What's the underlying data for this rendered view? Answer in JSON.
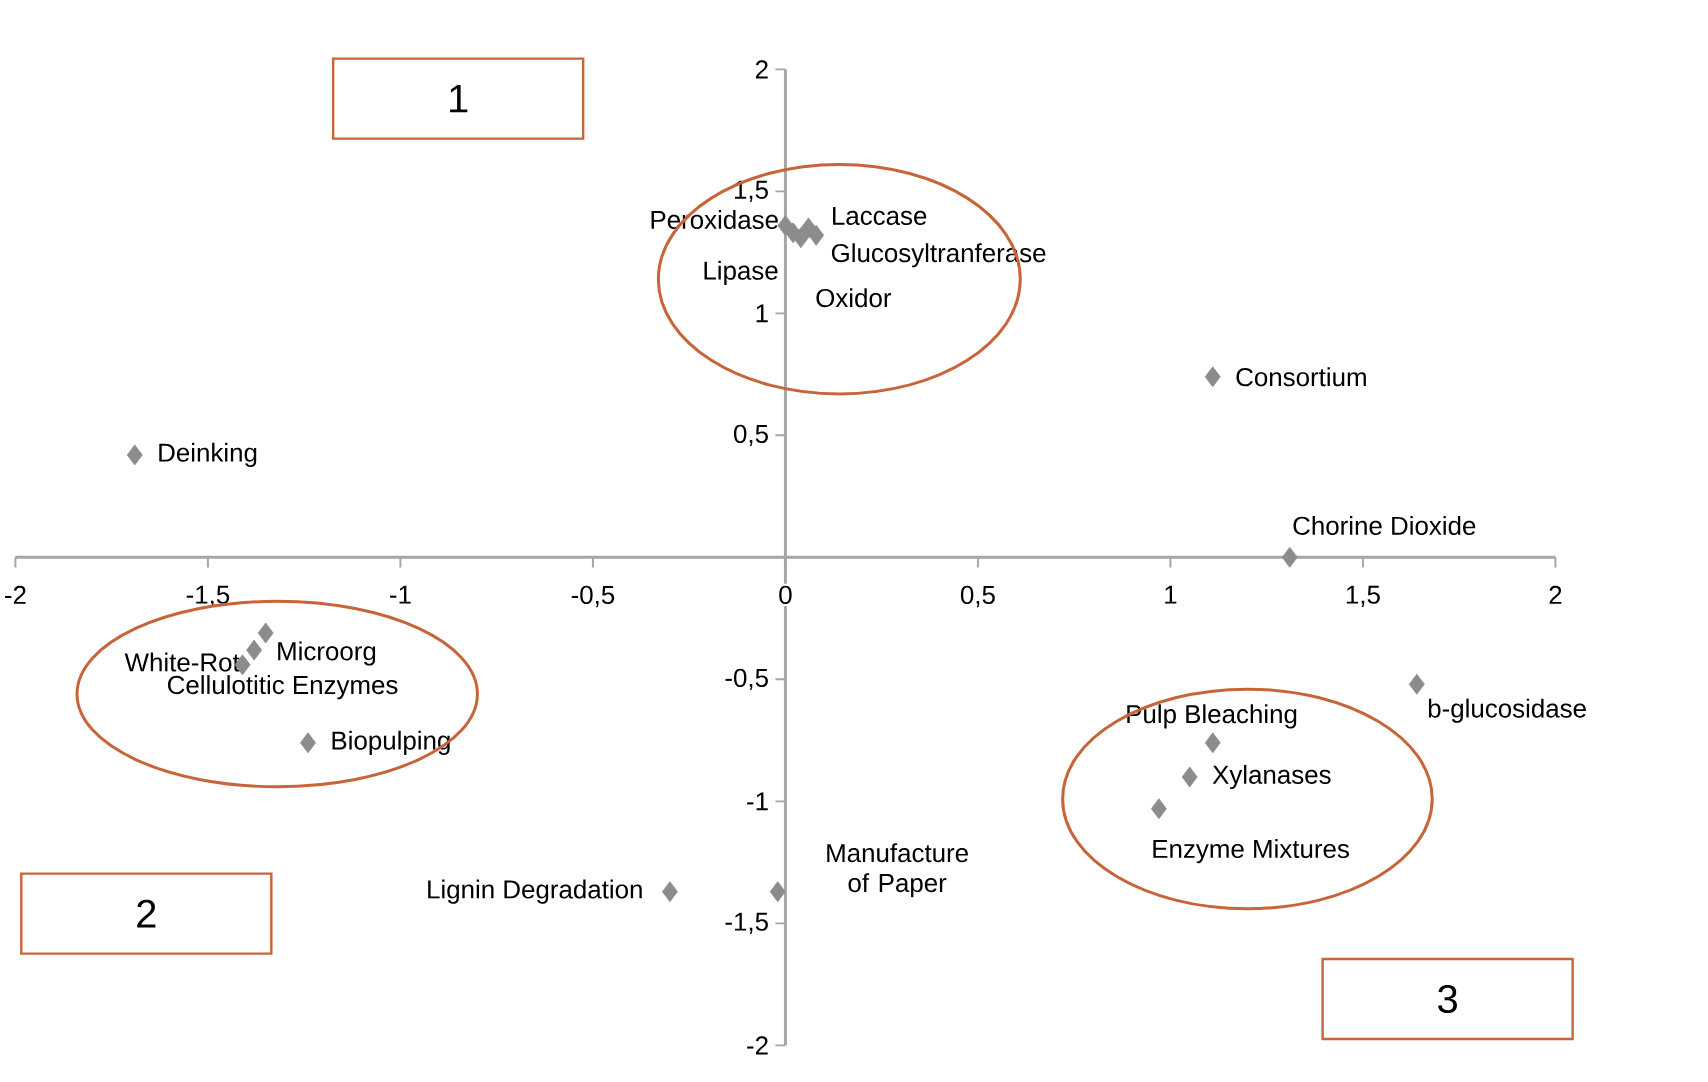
{
  "chart_data": {
    "type": "scatter",
    "marker": "diamond",
    "legend": false,
    "grid": false,
    "xlim": [
      -2,
      2
    ],
    "ylim": [
      -2,
      2
    ],
    "xticks": [
      -2,
      {
        "value": -1.5,
        "label": "-1,5"
      },
      -1,
      {
        "value": -0.5,
        "label": "-0,5"
      },
      0,
      {
        "value": 0.5,
        "label": "0,5"
      },
      1,
      {
        "value": 1.5,
        "label": "1,5"
      },
      2
    ],
    "yticks": [
      -2,
      {
        "value": -1.5,
        "label": "-1,5"
      },
      -1,
      {
        "value": -0.5,
        "label": "-0,5"
      },
      {
        "value": 0,
        "label": null
      },
      {
        "value": 0.5,
        "label": "0,5"
      },
      1,
      {
        "value": 1.5,
        "label": "1,5"
      },
      2
    ],
    "annotations": [
      "1",
      "2",
      "3"
    ],
    "series": [
      {
        "name": "Deinking",
        "color": "#8c8c8c",
        "x": [
          -1.69
        ],
        "values": [
          0.42
        ]
      },
      {
        "name": "Peroxidase",
        "color": "#8c8c8c",
        "x": [
          0.0
        ],
        "values": [
          1.36
        ]
      },
      {
        "name": "Laccase",
        "color": "#8c8c8c",
        "x": [
          0.06
        ],
        "values": [
          1.35
        ]
      },
      {
        "name": "Glucosyltranferase",
        "color": "#8c8c8c",
        "x": [
          0.08
        ],
        "values": [
          1.32
        ]
      },
      {
        "name": "Lipase",
        "color": "#8c8c8c",
        "x": [
          0.02
        ],
        "values": [
          1.33
        ]
      },
      {
        "name": "Oxidor",
        "color": "#8c8c8c",
        "x": [
          0.04
        ],
        "values": [
          1.31
        ]
      },
      {
        "name": "Consortium",
        "color": "#8c8c8c",
        "x": [
          1.11
        ],
        "values": [
          0.74
        ]
      },
      {
        "name": "Chorine Dioxide",
        "color": "#8c8c8c",
        "x": [
          1.31
        ],
        "values": [
          0.0
        ]
      },
      {
        "name": "White-Rot",
        "color": "#8c8c8c",
        "x": [
          -1.38
        ],
        "values": [
          -0.38
        ]
      },
      {
        "name": "Microorg",
        "color": "#8c8c8c",
        "x": [
          -1.35
        ],
        "values": [
          -0.31
        ]
      },
      {
        "name": "Cellulotitic Enzymes",
        "color": "#8c8c8c",
        "x": [
          -1.41
        ],
        "values": [
          -0.44
        ]
      },
      {
        "name": "Biopulping",
        "color": "#8c8c8c",
        "x": [
          -1.24
        ],
        "values": [
          -0.76
        ]
      },
      {
        "name": "Pulp Bleaching",
        "color": "#8c8c8c",
        "x": [
          1.11
        ],
        "values": [
          -0.76
        ]
      },
      {
        "name": "b-glucosidase",
        "color": "#8c8c8c",
        "x": [
          1.64
        ],
        "values": [
          -0.52
        ]
      },
      {
        "name": "Xylanases",
        "color": "#8c8c8c",
        "x": [
          1.05
        ],
        "values": [
          -0.9
        ]
      },
      {
        "name": "Enzyme Mixtures",
        "color": "#8c8c8c",
        "x": [
          0.97
        ],
        "values": [
          -1.03
        ]
      },
      {
        "name": "Lignin Degradation",
        "color": "#8c8c8c",
        "x": [
          -0.3
        ],
        "values": [
          -1.37
        ]
      },
      {
        "name": "Manufacture of Paper",
        "color": "#8c8c8c",
        "x": [
          -0.02
        ],
        "values": [
          -1.37
        ]
      }
    ]
  }
}
